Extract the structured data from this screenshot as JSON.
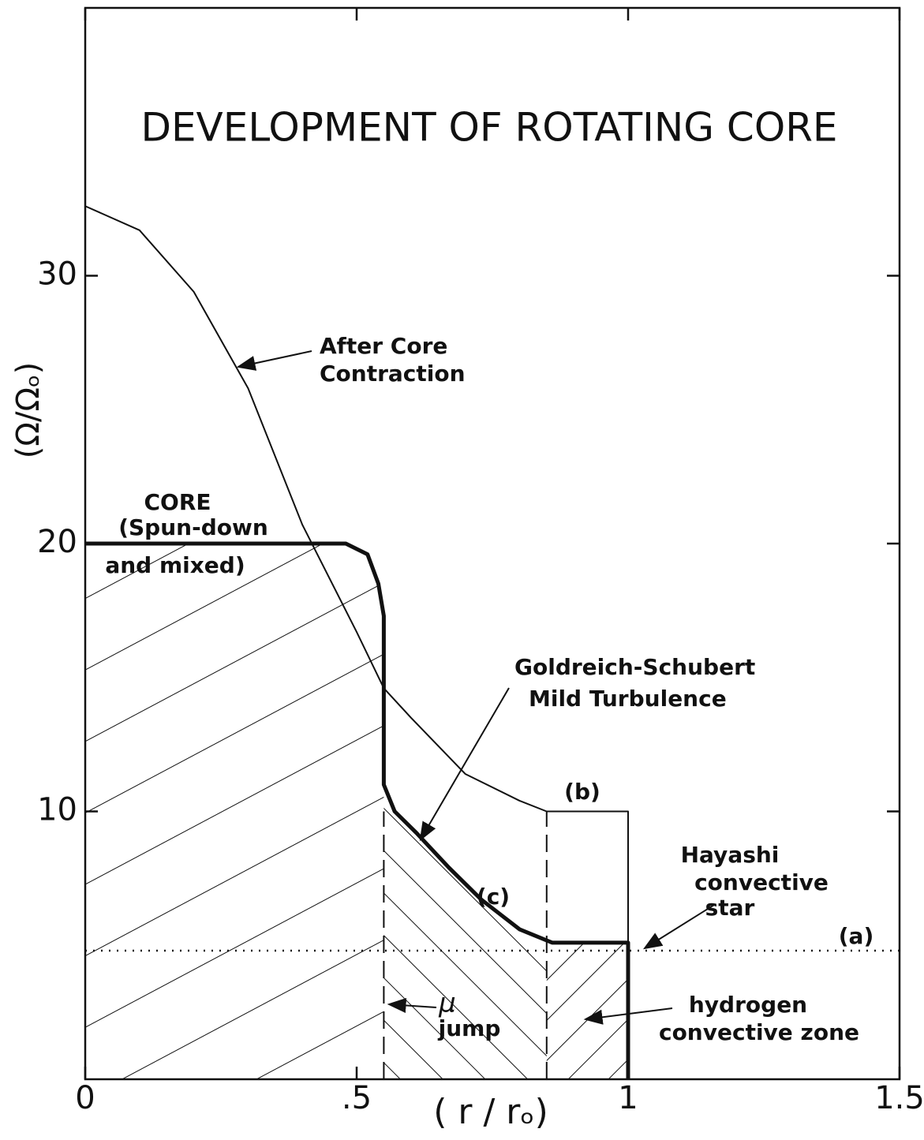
{
  "chart_data": {
    "type": "line",
    "title": "DEVELOPMENT OF ROTATING CORE",
    "x_label": "( r / rₒ)",
    "y_label": "(Ω/Ωₒ)",
    "xlim": [
      0,
      1.5
    ],
    "ylim": [
      0,
      40
    ],
    "xticks": [
      0,
      {
        "value": 0.5,
        "label": ".5"
      },
      1,
      1.5
    ],
    "yticks": [
      10,
      20,
      30
    ],
    "color": "#111111",
    "series": [
      {
        "name": "(b)",
        "style": "thin",
        "x": [
          0,
          0.1,
          0.2,
          0.3,
          0.4,
          0.5,
          0.55,
          0.6,
          0.7,
          0.8,
          0.85,
          1,
          1
        ],
        "values": [
          32.6,
          31.7,
          29.4,
          25.8,
          20.7,
          16.7,
          14.6,
          13.5,
          11.4,
          10.4,
          10,
          10,
          5.1
        ]
      },
      {
        "name": "(c)",
        "style": "thick",
        "x": [
          0,
          0.48,
          0.52,
          0.54,
          0.55,
          0.55,
          0.57,
          0.61,
          0.67,
          0.73,
          0.8,
          0.86,
          1,
          1
        ],
        "values": [
          20,
          20,
          19.6,
          18.5,
          17.3,
          11,
          10,
          9.2,
          7.9,
          6.7,
          5.6,
          5.1,
          5.1,
          0
        ]
      },
      {
        "name": "(a)",
        "style": "dotted",
        "x": [
          0,
          1.5
        ],
        "values": [
          4.8,
          4.8
        ]
      }
    ],
    "dashed_lines": [
      {
        "x": 0.55,
        "ymax": 10
      },
      {
        "x": 0.85,
        "ymax": 10
      }
    ],
    "annotations": [
      [
        "After Core",
        "Contraction"
      ],
      [
        "CORE",
        "(Spun-down",
        "and mixed)"
      ],
      [
        "Goldreich-Schubert",
        "Mild  Turbulence"
      ],
      [
        "Hayashi",
        "convective",
        "star"
      ],
      [
        "μ",
        "jump"
      ],
      [
        "hydrogen",
        "convective zone"
      ]
    ]
  }
}
